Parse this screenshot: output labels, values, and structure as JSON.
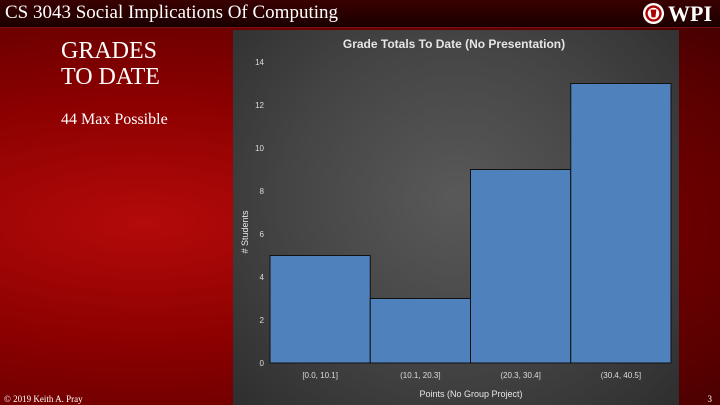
{
  "header": {
    "course_title": "CS 3043 Social Implications Of Computing",
    "logo_text": "WPI"
  },
  "slide": {
    "title_line1": "GRADES",
    "title_line2": "TO DATE",
    "subtitle": "44 Max Possible"
  },
  "footer": {
    "copyright": "© 2019 Keith A. Pray",
    "page_number": "3"
  },
  "colors": {
    "bar_fill": "#4f81bd",
    "bar_stroke": "#111111"
  },
  "chart_data": {
    "type": "bar",
    "title": "Grade Totals To Date (No Presentation)",
    "xlabel": "Points (No Group Project)",
    "ylabel": "# Students",
    "categories": [
      "[0.0, 10.1]",
      "(10.1, 20.3]",
      "(20.3, 30.4]",
      "(30.4, 40.5]"
    ],
    "values": [
      5,
      3,
      9,
      13
    ],
    "ylim": [
      0,
      14
    ],
    "yticks": [
      0,
      2,
      4,
      6,
      8,
      10,
      12,
      14
    ],
    "grid": false,
    "legend": "none"
  }
}
